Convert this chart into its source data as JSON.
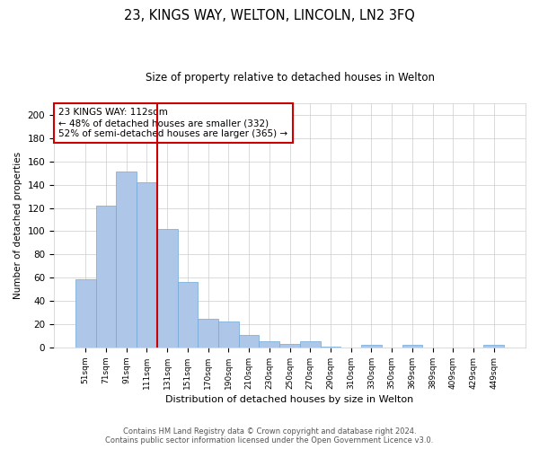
{
  "title_line1": "23, KINGS WAY, WELTON, LINCOLN, LN2 3FQ",
  "title_line2": "Size of property relative to detached houses in Welton",
  "xlabel": "Distribution of detached houses by size in Welton",
  "ylabel": "Number of detached properties",
  "categories": [
    "51sqm",
    "71sqm",
    "91sqm",
    "111sqm",
    "131sqm",
    "151sqm",
    "170sqm",
    "190sqm",
    "210sqm",
    "230sqm",
    "250sqm",
    "270sqm",
    "290sqm",
    "310sqm",
    "330sqm",
    "350sqm",
    "369sqm",
    "389sqm",
    "409sqm",
    "429sqm",
    "449sqm"
  ],
  "values": [
    59,
    122,
    151,
    142,
    102,
    56,
    25,
    22,
    11,
    5,
    3,
    5,
    1,
    0,
    2,
    0,
    2,
    0,
    0,
    0,
    2
  ],
  "bar_color": "#aec6e8",
  "bar_edgecolor": "#6fa8d6",
  "vline_x": 3.5,
  "vline_color": "#cc0000",
  "annotation_text": "23 KINGS WAY: 112sqm\n← 48% of detached houses are smaller (332)\n52% of semi-detached houses are larger (365) →",
  "annotation_box_edgecolor": "#cc0000",
  "annotation_box_facecolor": "#ffffff",
  "ylim": [
    0,
    210
  ],
  "yticks": [
    0,
    20,
    40,
    60,
    80,
    100,
    120,
    140,
    160,
    180,
    200
  ],
  "footer_line1": "Contains HM Land Registry data © Crown copyright and database right 2024.",
  "footer_line2": "Contains public sector information licensed under the Open Government Licence v3.0.",
  "background_color": "#ffffff",
  "grid_color": "#cccccc"
}
